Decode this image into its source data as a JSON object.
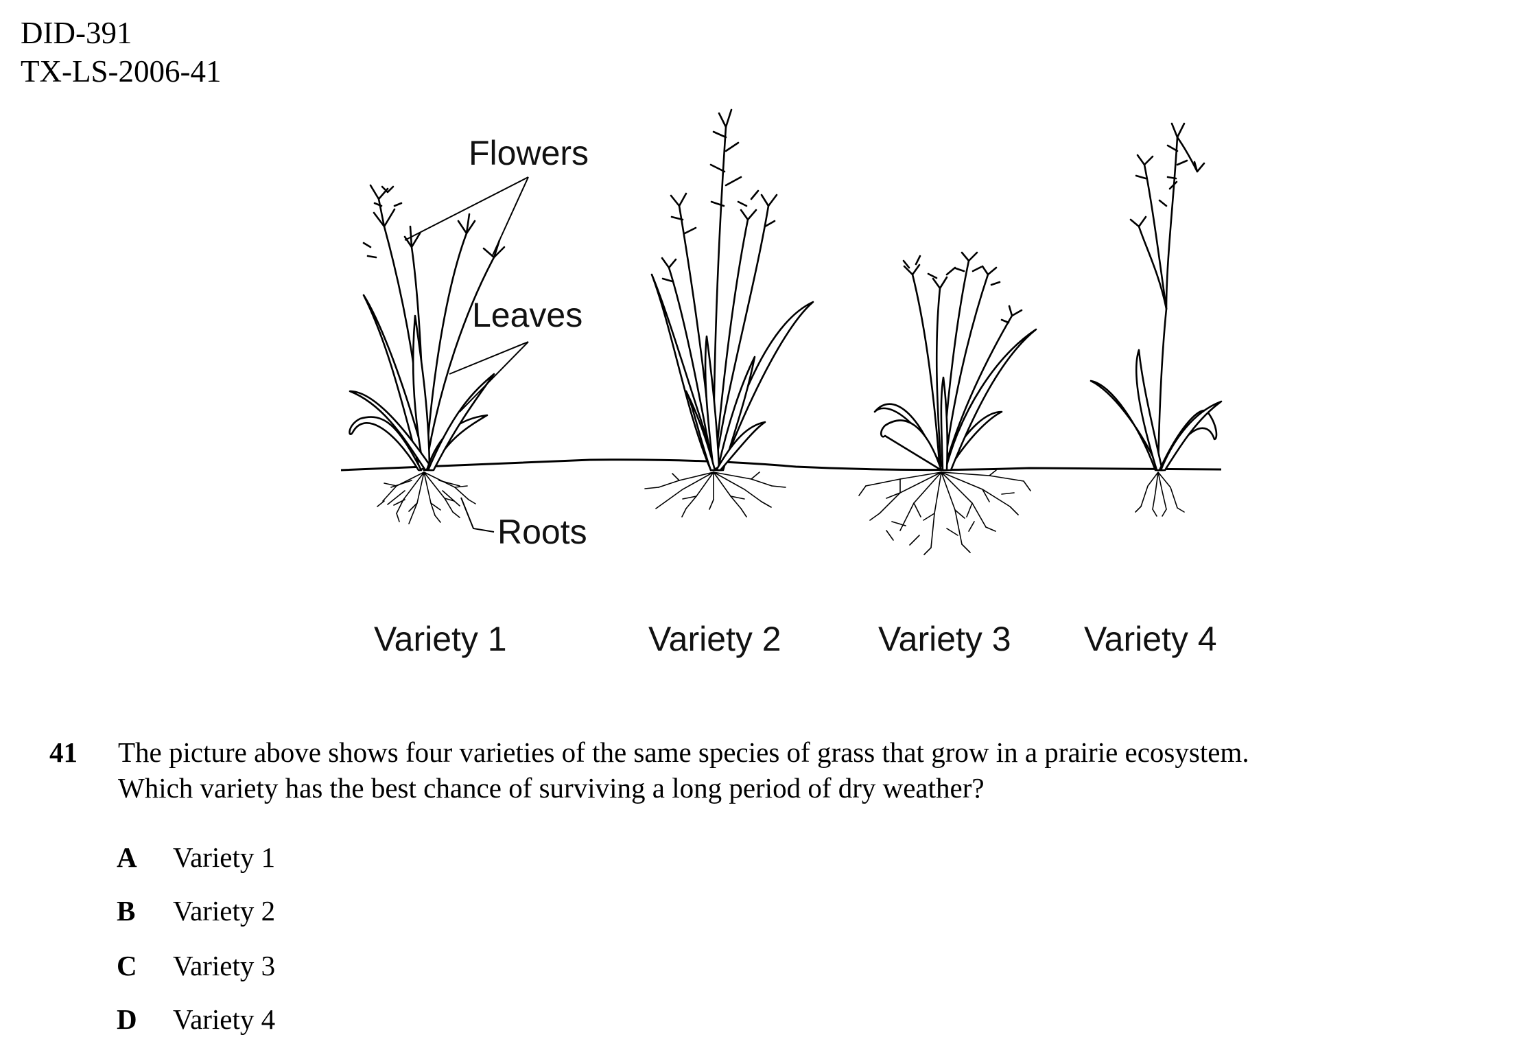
{
  "header": {
    "doc_id": "DID-391",
    "item_code": "TX-LS-2006-41"
  },
  "figure": {
    "labels": {
      "flowers": "Flowers",
      "leaves": "Leaves",
      "roots": "Roots"
    },
    "varieties": [
      "Variety 1",
      "Variety 2",
      "Variety 3",
      "Variety 4"
    ]
  },
  "question": {
    "number": "41",
    "text_line1": "The picture above shows four varieties of the same species of grass that grow in a prairie ecosystem.",
    "text_line2": "Which variety has the best chance of surviving a long period of dry weather?",
    "choices": [
      {
        "letter": "A",
        "text": "Variety 1"
      },
      {
        "letter": "B",
        "text": "Variety 2"
      },
      {
        "letter": "C",
        "text": "Variety 3"
      },
      {
        "letter": "D",
        "text": "Variety 4"
      }
    ]
  }
}
